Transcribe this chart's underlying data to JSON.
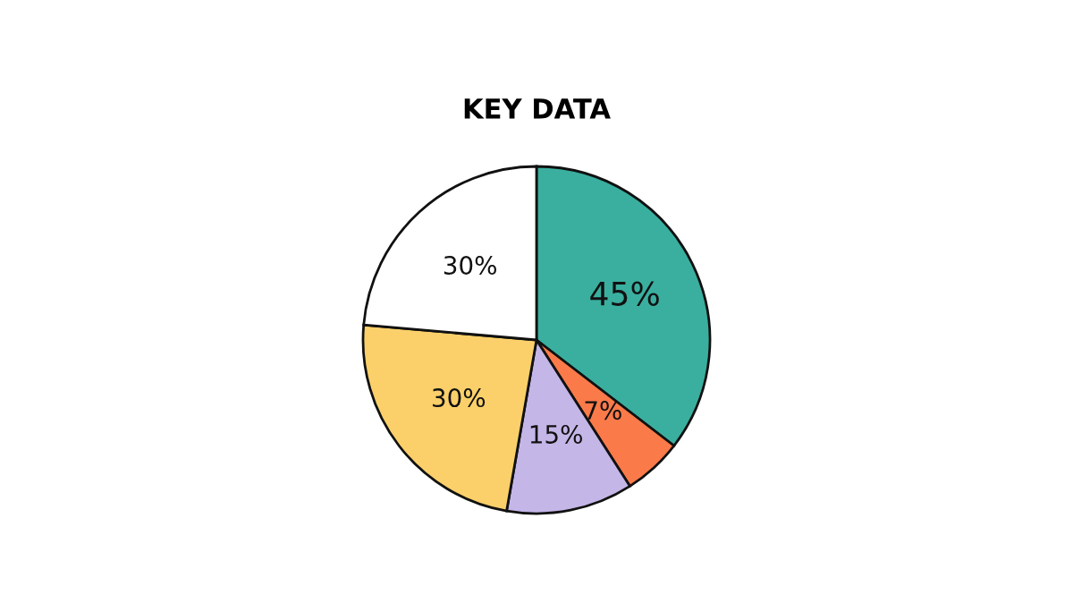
{
  "chart_data": {
    "type": "pie",
    "title": "KEY DATA",
    "categories": [
      null,
      null,
      null,
      null,
      null
    ],
    "values": [
      45,
      7,
      15,
      30,
      30
    ],
    "colors": [
      "#3aaf9f",
      "#fb7a4a",
      "#c5b6e8",
      "#fbd06a",
      "#ffffff"
    ],
    "value_labels": [
      "45%",
      "7%",
      "15%",
      "30%",
      "30%"
    ]
  }
}
